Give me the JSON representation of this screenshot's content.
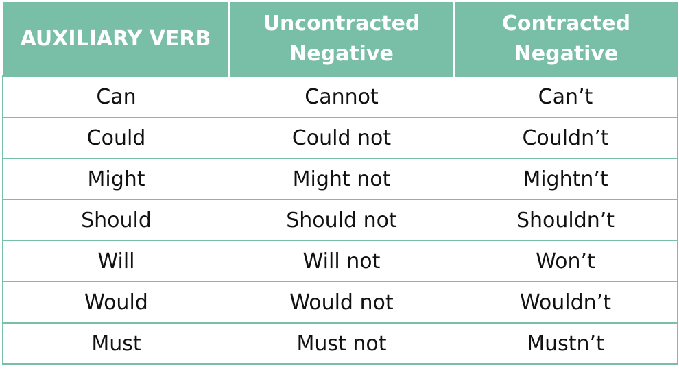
{
  "table": {
    "header_color": "#79bfa7",
    "headers": {
      "col1": "AUXILIARY VERB",
      "col2_line1": "Uncontracted",
      "col2_line2": "Negative",
      "col3_line1": "Contracted",
      "col3_line2": "Negative"
    },
    "rows": [
      {
        "verb": "Can",
        "uncontracted": "Cannot",
        "contracted": "Can’t"
      },
      {
        "verb": "Could",
        "uncontracted": "Could not",
        "contracted": "Couldn’t"
      },
      {
        "verb": "Might",
        "uncontracted": "Might not",
        "contracted": "Mightn’t"
      },
      {
        "verb": "Should",
        "uncontracted": "Should not",
        "contracted": "Shouldn’t"
      },
      {
        "verb": "Will",
        "uncontracted": "Will not",
        "contracted": "Won’t"
      },
      {
        "verb": "Would",
        "uncontracted": "Would not",
        "contracted": "Wouldn’t"
      },
      {
        "verb": "Must",
        "uncontracted": "Must not",
        "contracted": "Mustn’t"
      }
    ]
  }
}
